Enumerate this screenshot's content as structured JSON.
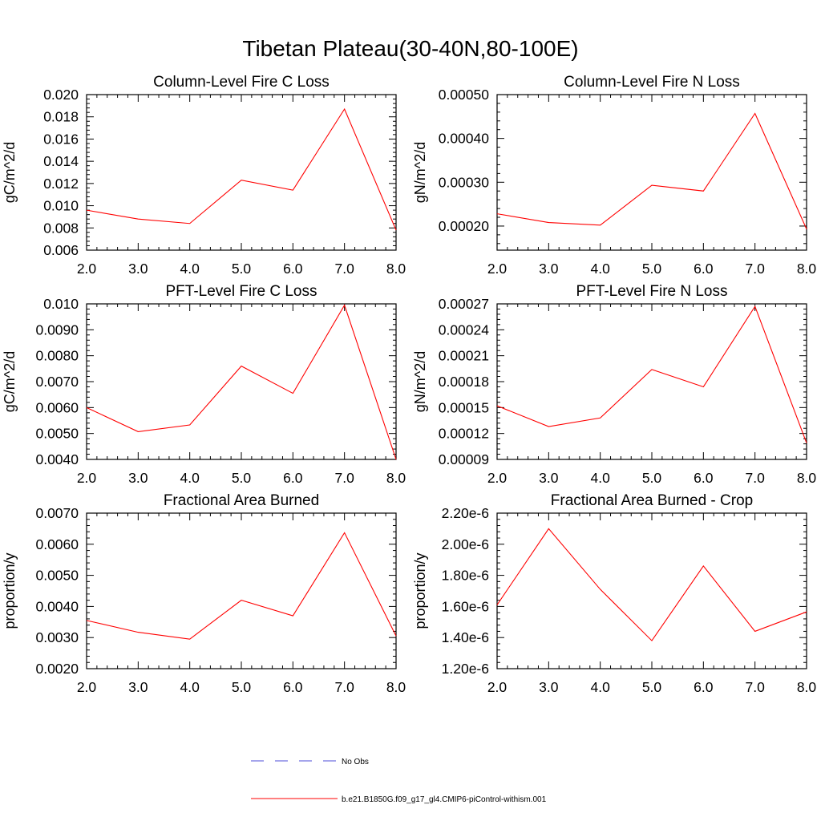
{
  "figure": {
    "title": "Tibetan Plateau(30-40N,80-100E)"
  },
  "legend": {
    "entries": [
      {
        "label": "No Obs",
        "color": "#4b4bd8",
        "dash": "dashed"
      },
      {
        "label": "b.e21.B1850G.f09_g17_gl4.CMIP6-piControl-withism.001",
        "color": "#ff0000",
        "dash": "solid"
      }
    ]
  },
  "chart_data": [
    {
      "type": "line",
      "title": "Column-Level Fire C Loss",
      "ylabel": "gC/m^2/d",
      "xlabel": "",
      "x": [
        2,
        3,
        4,
        5,
        6,
        7,
        8
      ],
      "xlim": [
        2,
        8
      ],
      "xticks": [
        "2.0",
        "3.0",
        "4.0",
        "5.0",
        "6.0",
        "7.0",
        "8.0"
      ],
      "ylim": [
        0.006,
        0.02
      ],
      "yticks": [
        "0.006",
        "0.008",
        "0.010",
        "0.012",
        "0.014",
        "0.016",
        "0.018",
        "0.020"
      ],
      "series": [
        {
          "name": "b.e21.B1850G.f09_g17_gl4.CMIP6-piControl-withism.001",
          "color": "#ff0000",
          "values": [
            0.0096,
            0.0088,
            0.0084,
            0.0123,
            0.0114,
            0.0187,
            0.0078
          ]
        }
      ]
    },
    {
      "type": "line",
      "title": "Column-Level Fire N Loss",
      "ylabel": "gN/m^2/d",
      "xlabel": "",
      "x": [
        2,
        3,
        4,
        5,
        6,
        7,
        8
      ],
      "xlim": [
        2,
        8
      ],
      "xticks": [
        "2.0",
        "3.0",
        "4.0",
        "5.0",
        "6.0",
        "7.0",
        "8.0"
      ],
      "ylim": [
        0.000145,
        0.0005
      ],
      "yticks": [
        "0.00020",
        "0.00030",
        "0.00040",
        "0.00050"
      ],
      "ytick_values": [
        0.0002,
        0.0003,
        0.0004,
        0.0005
      ],
      "series": [
        {
          "name": "b.e21.B1850G.f09_g17_gl4.CMIP6-piControl-withism.001",
          "color": "#ff0000",
          "values": [
            0.000228,
            0.000208,
            0.000202,
            0.000293,
            0.00028,
            0.000457,
            0.000193
          ]
        }
      ]
    },
    {
      "type": "line",
      "title": "PFT-Level Fire C Loss",
      "ylabel": "gC/m^2/d",
      "xlabel": "",
      "x": [
        2,
        3,
        4,
        5,
        6,
        7,
        8
      ],
      "xlim": [
        2,
        8
      ],
      "xticks": [
        "2.0",
        "3.0",
        "4.0",
        "5.0",
        "6.0",
        "7.0",
        "8.0"
      ],
      "ylim": [
        0.004,
        0.01
      ],
      "yticks": [
        "0.0040",
        "0.0050",
        "0.0060",
        "0.0070",
        "0.0080",
        "0.0090",
        "0.010"
      ],
      "series": [
        {
          "name": "b.e21.B1850G.f09_g17_gl4.CMIP6-piControl-withism.001",
          "color": "#ff0000",
          "values": [
            0.006,
            0.00507,
            0.00533,
            0.0076,
            0.00655,
            0.00995,
            0.004
          ]
        }
      ]
    },
    {
      "type": "line",
      "title": "PFT-Level Fire N Loss",
      "ylabel": "gN/m^2/d",
      "xlabel": "",
      "x": [
        2,
        3,
        4,
        5,
        6,
        7,
        8
      ],
      "xlim": [
        2,
        8
      ],
      "xticks": [
        "2.0",
        "3.0",
        "4.0",
        "5.0",
        "6.0",
        "7.0",
        "8.0"
      ],
      "ylim": [
        9e-05,
        0.00027
      ],
      "yticks": [
        "0.00009",
        "0.00012",
        "0.00015",
        "0.00018",
        "0.00021",
        "0.00024",
        "0.00027"
      ],
      "series": [
        {
          "name": "b.e21.B1850G.f09_g17_gl4.CMIP6-piControl-withism.001",
          "color": "#ff0000",
          "values": [
            0.000152,
            0.000128,
            0.000138,
            0.000194,
            0.000174,
            0.000267,
            0.000109
          ]
        }
      ]
    },
    {
      "type": "line",
      "title": "Fractional Area Burned",
      "ylabel": "proportion/y",
      "xlabel": "",
      "x": [
        2,
        3,
        4,
        5,
        6,
        7,
        8
      ],
      "xlim": [
        2,
        8
      ],
      "xticks": [
        "2.0",
        "3.0",
        "4.0",
        "5.0",
        "6.0",
        "7.0",
        "8.0"
      ],
      "ylim": [
        0.002,
        0.007
      ],
      "yticks": [
        "0.0020",
        "0.0030",
        "0.0040",
        "0.0050",
        "0.0060",
        "0.0070"
      ],
      "series": [
        {
          "name": "b.e21.B1850G.f09_g17_gl4.CMIP6-piControl-withism.001",
          "color": "#ff0000",
          "values": [
            0.00355,
            0.00317,
            0.00295,
            0.0042,
            0.0037,
            0.00637,
            0.00305
          ]
        }
      ]
    },
    {
      "type": "line",
      "title": "Fractional Area Burned - Crop",
      "ylabel": "proportion/y",
      "xlabel": "",
      "x": [
        2,
        3,
        4,
        5,
        6,
        7,
        8
      ],
      "xlim": [
        2,
        8
      ],
      "xticks": [
        "2.0",
        "3.0",
        "4.0",
        "5.0",
        "6.0",
        "7.0",
        "8.0"
      ],
      "ylim": [
        1.2e-06,
        2.2e-06
      ],
      "yticks": [
        "1.20e-6",
        "1.40e-6",
        "1.60e-6",
        "1.80e-6",
        "2.00e-6",
        "2.20e-6"
      ],
      "series": [
        {
          "name": "b.e21.B1850G.f09_g17_gl4.CMIP6-piControl-withism.001",
          "color": "#ff0000",
          "values": [
            1.61e-06,
            2.1e-06,
            1.71e-06,
            1.38e-06,
            1.86e-06,
            1.44e-06,
            1.565e-06
          ]
        }
      ]
    }
  ]
}
